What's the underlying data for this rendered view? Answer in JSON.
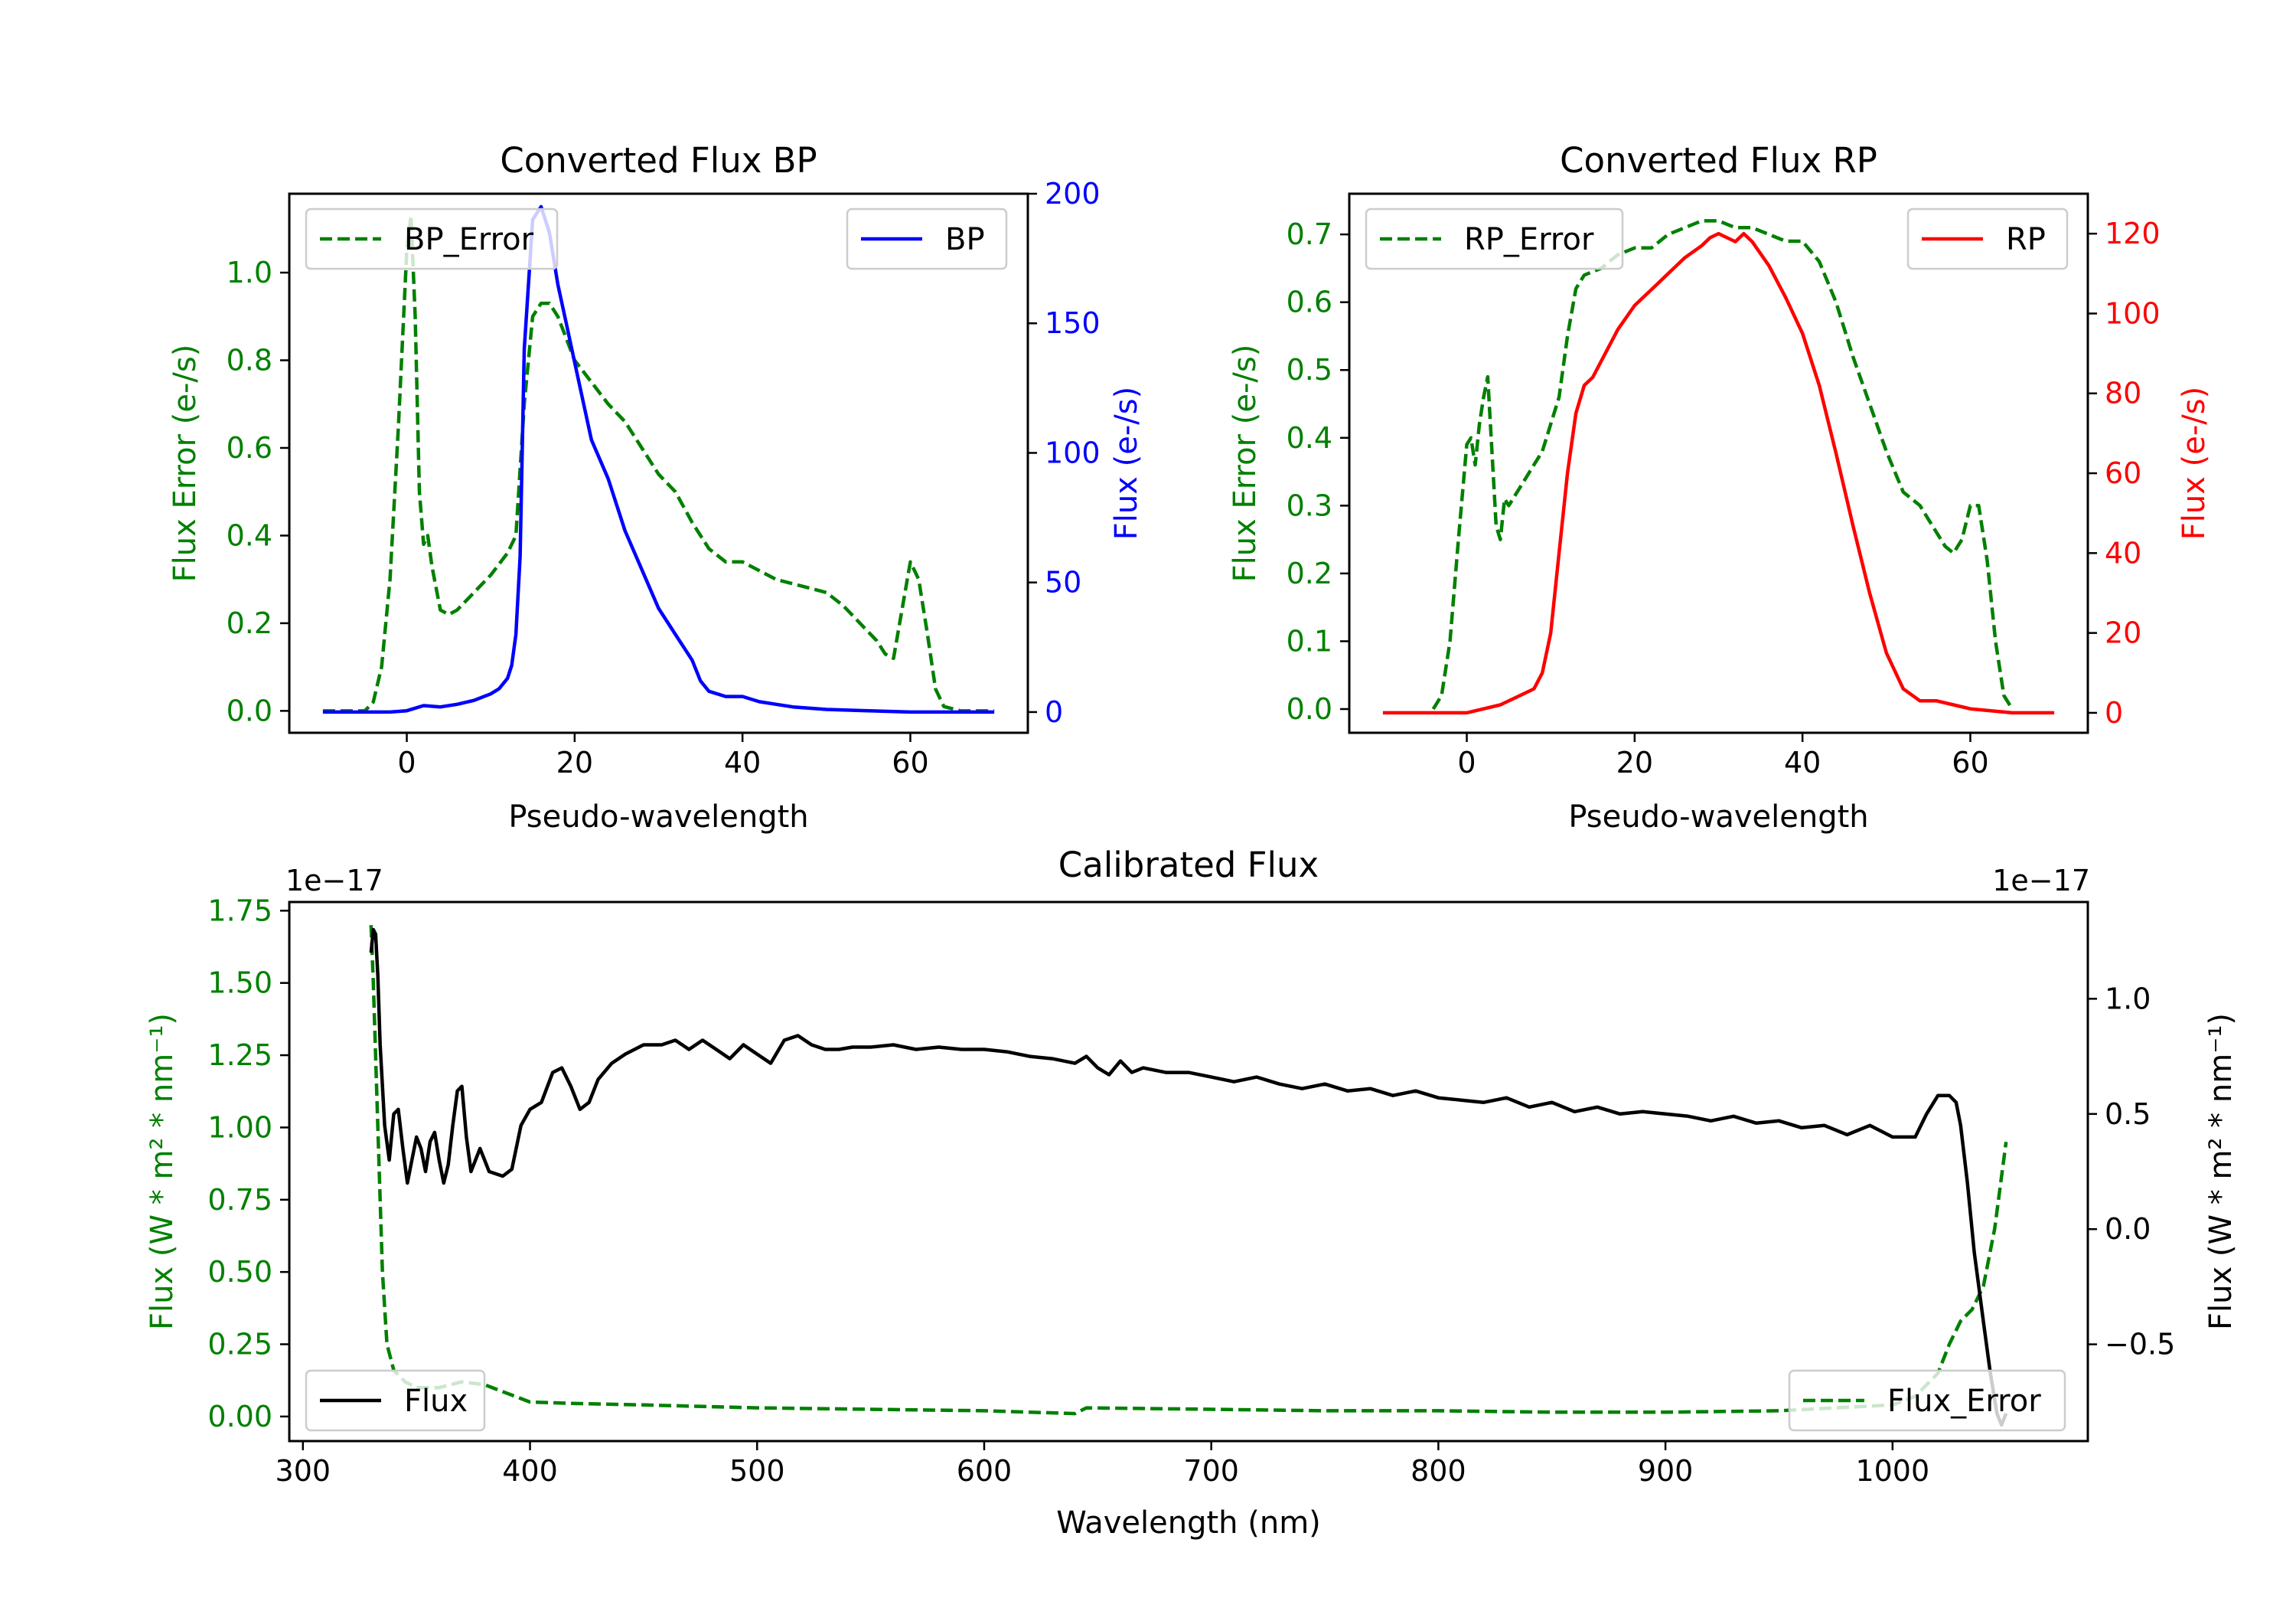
{
  "chart_data": [
    {
      "type": "line",
      "title": "Converted Flux BP",
      "xlabel": "Pseudo-wavelength",
      "ylabel_left": "Flux Error (e-/s)",
      "ylabel_right": "Flux (e-/s)",
      "xlim": [
        -14,
        74
      ],
      "ylim_left": [
        -0.05,
        1.18
      ],
      "ylim_right": [
        -8,
        200
      ],
      "xticks": [
        0,
        20,
        40,
        60
      ],
      "yticks_left": [
        0.0,
        0.2,
        0.4,
        0.6,
        0.8,
        1.0
      ],
      "yticks_left_labels": [
        "0.0",
        "0.2",
        "0.4",
        "0.6",
        "0.8",
        "1.0"
      ],
      "yticks_right": [
        0,
        50,
        100,
        150,
        200
      ],
      "yticks_right_labels": [
        "0",
        "50",
        "100",
        "150",
        "200"
      ],
      "left_color": "#008000",
      "right_color": "#0000ff",
      "legend_left": {
        "label": "BP_Error",
        "position": "upper left"
      },
      "legend_right": {
        "label": "BP",
        "position": "upper right"
      },
      "series_left": {
        "name": "BP_Error",
        "style": "dashed",
        "color": "#008000",
        "x": [
          -10,
          -8,
          -5,
          -4,
          -3,
          -2,
          -1,
          0,
          0.5,
          1,
          1.5,
          2,
          2.5,
          3,
          3.5,
          4,
          5,
          6,
          8,
          10,
          12,
          13,
          14,
          15,
          16,
          17,
          18,
          19,
          20,
          22,
          24,
          26,
          28,
          30,
          32,
          34,
          36,
          38,
          40,
          42,
          44,
          46,
          48,
          50,
          52,
          54,
          56,
          57,
          58,
          59,
          60,
          61,
          62,
          63,
          64,
          66,
          68,
          70
        ],
        "y": [
          0.0,
          0.0,
          0.0,
          0.02,
          0.1,
          0.3,
          0.65,
          1.05,
          1.13,
          0.9,
          0.5,
          0.38,
          0.4,
          0.33,
          0.28,
          0.23,
          0.22,
          0.23,
          0.27,
          0.31,
          0.36,
          0.4,
          0.7,
          0.9,
          0.93,
          0.93,
          0.9,
          0.85,
          0.8,
          0.75,
          0.7,
          0.66,
          0.6,
          0.54,
          0.5,
          0.43,
          0.37,
          0.34,
          0.34,
          0.32,
          0.3,
          0.29,
          0.28,
          0.27,
          0.24,
          0.2,
          0.16,
          0.13,
          0.12,
          0.23,
          0.34,
          0.3,
          0.18,
          0.05,
          0.01,
          0.0,
          0.0,
          0.0
        ]
      },
      "series_right": {
        "name": "BP",
        "style": "solid",
        "color": "#0000ff",
        "x": [
          -10,
          -5,
          -2,
          0,
          2,
          4,
          6,
          8,
          10,
          11,
          12,
          12.5,
          13,
          13.5,
          14,
          15,
          16,
          17,
          18,
          19,
          20,
          21,
          22,
          24,
          26,
          28,
          30,
          32,
          34,
          35,
          36,
          38,
          40,
          42,
          44,
          46,
          50,
          55,
          60,
          65,
          70
        ],
        "y": [
          0,
          0,
          0,
          0.5,
          2.5,
          2,
          3,
          4.5,
          7,
          9,
          13,
          18,
          30,
          60,
          140,
          190,
          195,
          185,
          165,
          150,
          135,
          120,
          105,
          90,
          70,
          55,
          40,
          30,
          20,
          12,
          8,
          6,
          6,
          4,
          3,
          2,
          1,
          0.5,
          0,
          0,
          0
        ]
      }
    },
    {
      "type": "line",
      "title": "Converted Flux RP",
      "xlabel": "Pseudo-wavelength",
      "ylabel_left": "Flux Error (e-/s)",
      "ylabel_right": "Flux (e-/s)",
      "xlim": [
        -14,
        74
      ],
      "ylim_left": [
        -0.035,
        0.76
      ],
      "ylim_right": [
        -5,
        130
      ],
      "xticks": [
        0,
        20,
        40,
        60
      ],
      "yticks_left": [
        0.0,
        0.1,
        0.2,
        0.3,
        0.4,
        0.5,
        0.6,
        0.7
      ],
      "yticks_left_labels": [
        "0.0",
        "0.1",
        "0.2",
        "0.3",
        "0.4",
        "0.5",
        "0.6",
        "0.7"
      ],
      "yticks_right": [
        0,
        20,
        40,
        60,
        80,
        100,
        120
      ],
      "yticks_right_labels": [
        "0",
        "20",
        "40",
        "60",
        "80",
        "100",
        "120"
      ],
      "left_color": "#008000",
      "right_color": "#ff0000",
      "legend_left": {
        "label": "RP_Error",
        "position": "upper left"
      },
      "legend_right": {
        "label": "RP",
        "position": "upper right"
      },
      "series_left": {
        "name": "RP_Error",
        "style": "dashed",
        "color": "#008000",
        "x": [
          -4,
          -3,
          -2,
          -1,
          0,
          0.5,
          1,
          1.5,
          2,
          2.5,
          3,
          3.5,
          4,
          4.5,
          5,
          7,
          9,
          11,
          12,
          13,
          14,
          16,
          18,
          20,
          22,
          24,
          26,
          28,
          30,
          32,
          34,
          36,
          38,
          40,
          42,
          44,
          46,
          48,
          50,
          52,
          54,
          55,
          56,
          57,
          58,
          59,
          60,
          61,
          62,
          63,
          64,
          65
        ],
        "y": [
          0.0,
          0.02,
          0.1,
          0.25,
          0.39,
          0.4,
          0.36,
          0.42,
          0.46,
          0.49,
          0.38,
          0.27,
          0.25,
          0.31,
          0.3,
          0.34,
          0.38,
          0.46,
          0.55,
          0.62,
          0.64,
          0.65,
          0.67,
          0.68,
          0.68,
          0.7,
          0.71,
          0.72,
          0.72,
          0.71,
          0.71,
          0.7,
          0.69,
          0.69,
          0.66,
          0.6,
          0.52,
          0.45,
          0.38,
          0.32,
          0.3,
          0.28,
          0.26,
          0.24,
          0.23,
          0.25,
          0.3,
          0.3,
          0.22,
          0.1,
          0.02,
          0.0
        ]
      },
      "series_right": {
        "name": "RP",
        "style": "solid",
        "color": "#ff0000",
        "x": [
          -10,
          -5,
          0,
          2,
          4,
          6,
          8,
          9,
          10,
          11,
          12,
          13,
          14,
          15,
          16,
          18,
          20,
          22,
          24,
          26,
          28,
          29,
          30,
          31,
          32,
          33,
          34,
          36,
          38,
          40,
          42,
          44,
          46,
          48,
          50,
          52,
          54,
          56,
          58,
          60,
          65,
          70
        ],
        "y": [
          0,
          0,
          0,
          1,
          2,
          4,
          6,
          10,
          20,
          40,
          60,
          75,
          82,
          84,
          88,
          96,
          102,
          106,
          110,
          114,
          117,
          119,
          120,
          119,
          118,
          120,
          118,
          112,
          104,
          95,
          82,
          65,
          47,
          30,
          15,
          6,
          3,
          3,
          2,
          1,
          0,
          0
        ]
      }
    },
    {
      "type": "line",
      "title": "Calibrated Flux",
      "xlabel": "Wavelength (nm)",
      "ylabel_left": "Flux (W * m² * nm⁻¹)",
      "ylabel_right": "Flux (W * m² * nm⁻¹)",
      "offset_left": "1e−17",
      "offset_right": "1e−17",
      "xlim": [
        294,
        1086
      ],
      "ylim_left": [
        -0.085,
        1.78
      ],
      "ylim_right": [
        -0.92,
        1.42
      ],
      "xticks": [
        300,
        400,
        500,
        600,
        700,
        800,
        900,
        1000
      ],
      "yticks_left": [
        0.0,
        0.25,
        0.5,
        0.75,
        1.0,
        1.25,
        1.5,
        1.75
      ],
      "yticks_left_labels": [
        "0.00",
        "0.25",
        "0.50",
        "0.75",
        "1.00",
        "1.25",
        "1.50",
        "1.75"
      ],
      "yticks_right": [
        -0.5,
        0.0,
        0.5,
        1.0
      ],
      "yticks_right_labels": [
        "−0.5",
        "0.0",
        "0.5",
        "1.0"
      ],
      "left_color": "#008000",
      "right_color": "#000000",
      "legend_left": {
        "label": "Flux_Error",
        "position": "lower right"
      },
      "legend_right": {
        "label": "Flux",
        "position": "lower left"
      },
      "series_left": {
        "name": "Flux_Error",
        "style": "dashed",
        "color": "#008000",
        "x": [
          330,
          331,
          333,
          335,
          337,
          340,
          345,
          350,
          360,
          370,
          380,
          390,
          400,
          420,
          450,
          500,
          550,
          600,
          640,
          645,
          700,
          750,
          800,
          850,
          900,
          950,
          1000,
          1010,
          1020,
          1025,
          1030,
          1035,
          1040,
          1045,
          1050
        ],
        "y": [
          1.7,
          1.5,
          1.0,
          0.5,
          0.25,
          0.16,
          0.12,
          0.1,
          0.1,
          0.12,
          0.11,
          0.08,
          0.05,
          0.045,
          0.04,
          0.03,
          0.025,
          0.02,
          0.01,
          0.03,
          0.025,
          0.02,
          0.02,
          0.015,
          0.015,
          0.02,
          0.04,
          0.07,
          0.15,
          0.25,
          0.33,
          0.37,
          0.45,
          0.65,
          0.95
        ]
      },
      "series_right": {
        "name": "Flux",
        "style": "solid",
        "color": "#000000",
        "x": [
          330,
          331,
          332,
          333,
          334,
          336,
          338,
          340,
          342,
          344,
          346,
          348,
          350,
          352,
          354,
          356,
          358,
          360,
          362,
          364,
          366,
          368,
          370,
          372,
          374,
          376,
          378,
          380,
          382,
          385,
          388,
          392,
          396,
          400,
          405,
          410,
          414,
          418,
          422,
          426,
          430,
          436,
          442,
          450,
          458,
          464,
          470,
          476,
          482,
          488,
          494,
          500,
          506,
          512,
          518,
          524,
          530,
          536,
          542,
          550,
          560,
          570,
          580,
          590,
          600,
          610,
          620,
          630,
          640,
          645,
          650,
          655,
          660,
          665,
          670,
          680,
          690,
          700,
          710,
          720,
          730,
          740,
          750,
          760,
          770,
          780,
          790,
          800,
          810,
          820,
          830,
          840,
          850,
          860,
          870,
          880,
          890,
          900,
          910,
          920,
          930,
          940,
          950,
          960,
          970,
          980,
          990,
          1000,
          1010,
          1015,
          1020,
          1025,
          1028,
          1030,
          1033,
          1036,
          1040,
          1043,
          1046,
          1048,
          1050
        ],
        "y": [
          1.2,
          1.3,
          1.28,
          1.1,
          0.8,
          0.45,
          0.3,
          0.5,
          0.52,
          0.35,
          0.2,
          0.3,
          0.4,
          0.35,
          0.25,
          0.38,
          0.42,
          0.3,
          0.2,
          0.28,
          0.45,
          0.6,
          0.62,
          0.4,
          0.25,
          0.3,
          0.35,
          0.3,
          0.25,
          0.24,
          0.23,
          0.26,
          0.45,
          0.52,
          0.55,
          0.68,
          0.7,
          0.62,
          0.52,
          0.55,
          0.65,
          0.72,
          0.76,
          0.8,
          0.8,
          0.82,
          0.78,
          0.82,
          0.78,
          0.74,
          0.8,
          0.76,
          0.72,
          0.82,
          0.84,
          0.8,
          0.78,
          0.78,
          0.79,
          0.79,
          0.8,
          0.78,
          0.79,
          0.78,
          0.78,
          0.77,
          0.75,
          0.74,
          0.72,
          0.75,
          0.7,
          0.67,
          0.73,
          0.68,
          0.7,
          0.68,
          0.68,
          0.66,
          0.64,
          0.66,
          0.63,
          0.61,
          0.63,
          0.6,
          0.61,
          0.58,
          0.6,
          0.57,
          0.56,
          0.55,
          0.57,
          0.53,
          0.55,
          0.51,
          0.53,
          0.5,
          0.51,
          0.5,
          0.49,
          0.47,
          0.49,
          0.46,
          0.47,
          0.44,
          0.45,
          0.41,
          0.45,
          0.4,
          0.4,
          0.5,
          0.58,
          0.58,
          0.55,
          0.45,
          0.2,
          -0.1,
          -0.4,
          -0.62,
          -0.8,
          -0.85,
          -0.8
        ]
      }
    }
  ]
}
